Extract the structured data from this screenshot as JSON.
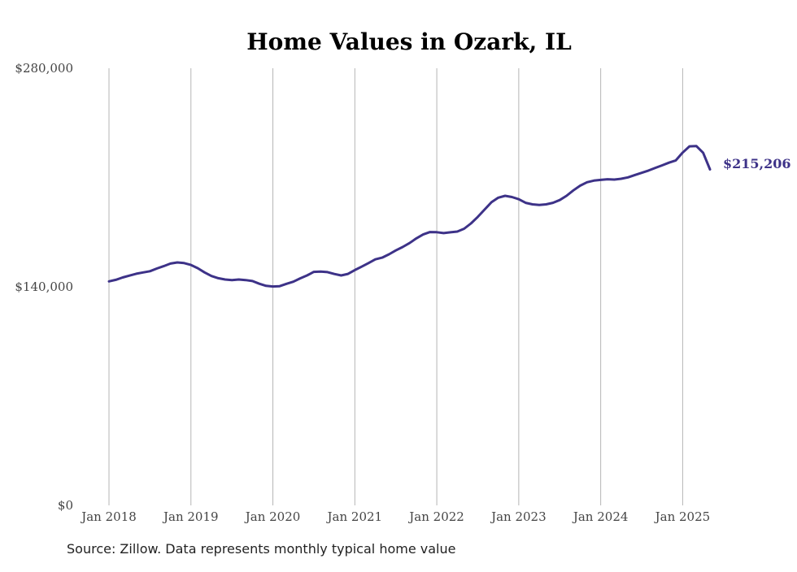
{
  "chart_data": {
    "type": "line",
    "title": "Home Values in Ozark, IL",
    "xlabel": "",
    "ylabel": "",
    "ylim": [
      0,
      280000
    ],
    "y_ticks": [
      0,
      140000,
      280000
    ],
    "y_tick_labels": [
      "$0",
      "$140,000",
      "$280,000"
    ],
    "x_range": [
      "2018-01",
      "2025-05"
    ],
    "x_ticks": [
      "2018-01",
      "2019-01",
      "2020-01",
      "2021-01",
      "2022-01",
      "2023-01",
      "2024-01",
      "2025-01"
    ],
    "x_tick_labels": [
      "Jan 2018",
      "Jan 2019",
      "Jan 2020",
      "Jan 2021",
      "Jan 2022",
      "Jan 2023",
      "Jan 2024",
      "Jan 2025"
    ],
    "grid": "vertical",
    "line_color": "#3d3288",
    "end_label": "$215,206",
    "series": [
      {
        "points": [
          [
            "2018-01",
            143500
          ],
          [
            "2018-02",
            144500
          ],
          [
            "2018-03",
            146000
          ],
          [
            "2018-04",
            147200
          ],
          [
            "2018-05",
            148400
          ],
          [
            "2018-06",
            149200
          ],
          [
            "2018-07",
            150000
          ],
          [
            "2018-08",
            151700
          ],
          [
            "2018-09",
            153200
          ],
          [
            "2018-10",
            154900
          ],
          [
            "2018-11",
            155600
          ],
          [
            "2018-12",
            155200
          ],
          [
            "2019-01",
            154000
          ],
          [
            "2019-02",
            151900
          ],
          [
            "2019-03",
            149200
          ],
          [
            "2019-04",
            146900
          ],
          [
            "2019-05",
            145500
          ],
          [
            "2019-06",
            144700
          ],
          [
            "2019-07",
            144300
          ],
          [
            "2019-08",
            144700
          ],
          [
            "2019-09",
            144300
          ],
          [
            "2019-10",
            143700
          ],
          [
            "2019-11",
            142000
          ],
          [
            "2019-12",
            140600
          ],
          [
            "2020-01",
            140200
          ],
          [
            "2020-02",
            140400
          ],
          [
            "2020-03",
            141900
          ],
          [
            "2020-04",
            143300
          ],
          [
            "2020-05",
            145400
          ],
          [
            "2020-06",
            147300
          ],
          [
            "2020-07",
            149600
          ],
          [
            "2020-08",
            149800
          ],
          [
            "2020-09",
            149400
          ],
          [
            "2020-10",
            148200
          ],
          [
            "2020-11",
            147300
          ],
          [
            "2020-12",
            148300
          ],
          [
            "2021-01",
            150700
          ],
          [
            "2021-02",
            152900
          ],
          [
            "2021-03",
            155200
          ],
          [
            "2021-04",
            157600
          ],
          [
            "2021-05",
            158700
          ],
          [
            "2021-06",
            160800
          ],
          [
            "2021-07",
            163300
          ],
          [
            "2021-08",
            165500
          ],
          [
            "2021-09",
            168000
          ],
          [
            "2021-10",
            171000
          ],
          [
            "2021-11",
            173500
          ],
          [
            "2021-12",
            175100
          ],
          [
            "2022-01",
            175000
          ],
          [
            "2022-02",
            174400
          ],
          [
            "2022-03",
            174900
          ],
          [
            "2022-04",
            175400
          ],
          [
            "2022-05",
            177200
          ],
          [
            "2022-06",
            180600
          ],
          [
            "2022-07",
            184800
          ],
          [
            "2022-08",
            189500
          ],
          [
            "2022-09",
            194200
          ],
          [
            "2022-10",
            197100
          ],
          [
            "2022-11",
            198300
          ],
          [
            "2022-12",
            197500
          ],
          [
            "2023-01",
            196100
          ],
          [
            "2023-02",
            193800
          ],
          [
            "2023-03",
            192800
          ],
          [
            "2023-04",
            192400
          ],
          [
            "2023-05",
            192800
          ],
          [
            "2023-06",
            193800
          ],
          [
            "2023-07",
            195600
          ],
          [
            "2023-08",
            198300
          ],
          [
            "2023-09",
            201800
          ],
          [
            "2023-10",
            204800
          ],
          [
            "2023-11",
            207000
          ],
          [
            "2023-12",
            208000
          ]
        ]
      }
    ]
  },
  "footer": {
    "source": "Source: Zillow. Data represents monthly typical home value"
  }
}
